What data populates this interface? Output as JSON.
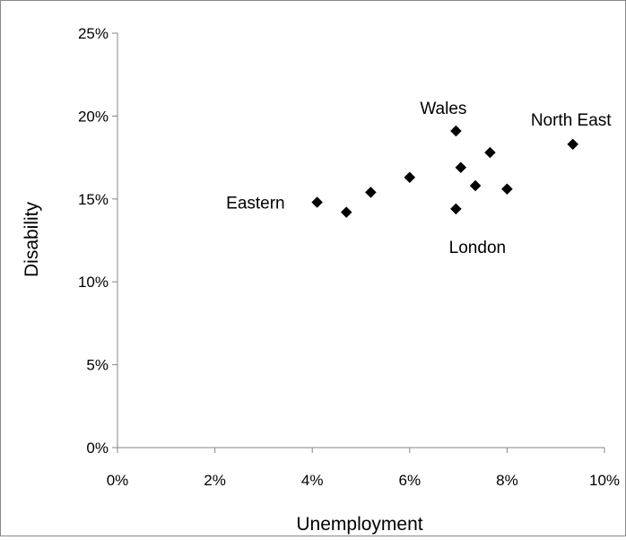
{
  "chart_data": {
    "type": "scatter",
    "title": "",
    "xlabel": "Unemployment",
    "ylabel": "Disability",
    "xlim": [
      0,
      10
    ],
    "ylim": [
      0,
      25
    ],
    "x_ticks": [
      0,
      2,
      4,
      6,
      8,
      10
    ],
    "y_ticks": [
      0,
      5,
      10,
      15,
      20,
      25
    ],
    "x_tick_labels": [
      "0%",
      "2%",
      "4%",
      "6%",
      "8%",
      "10%"
    ],
    "y_tick_labels": [
      "0%",
      "5%",
      "10%",
      "15%",
      "20%",
      "25%"
    ],
    "grid": false,
    "legend": "none",
    "marker": "diamond",
    "marker_color": "#000000",
    "points": [
      {
        "x": 4.1,
        "y": 14.8
      },
      {
        "x": 4.7,
        "y": 14.2
      },
      {
        "x": 5.2,
        "y": 15.4
      },
      {
        "x": 6.0,
        "y": 16.3
      },
      {
        "x": 6.95,
        "y": 19.1
      },
      {
        "x": 6.95,
        "y": 14.4
      },
      {
        "x": 7.05,
        "y": 16.9
      },
      {
        "x": 7.35,
        "y": 15.8
      },
      {
        "x": 7.65,
        "y": 17.8
      },
      {
        "x": 8.0,
        "y": 15.6
      },
      {
        "x": 9.35,
        "y": 18.3
      }
    ],
    "annotations": [
      {
        "text": "Eastern",
        "x": 4.1,
        "y": 14.8
      },
      {
        "text": "Wales",
        "x": 6.95,
        "y": 19.1
      },
      {
        "text": "London",
        "x": 6.95,
        "y": 14.4
      },
      {
        "text": "North East",
        "x": 9.35,
        "y": 18.3
      }
    ]
  }
}
